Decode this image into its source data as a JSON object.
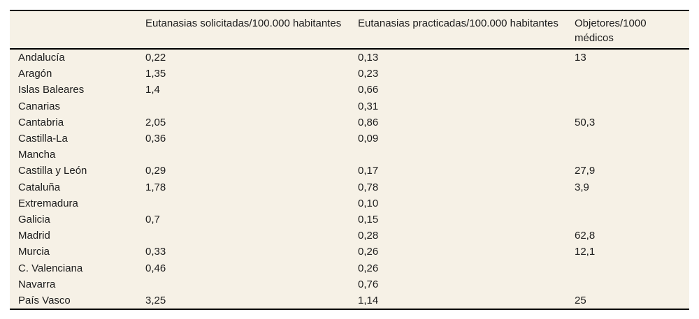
{
  "table": {
    "columns": [
      "",
      "Eutanasias solicitadas/100.000 habitantes",
      "Eutanasias practicadas/100.000 habitantes",
      "Objetores/1000 médicos"
    ],
    "rows": [
      {
        "region": "Andalucía",
        "solicitadas": "0,22",
        "practicadas": "0,13",
        "objetores": "13"
      },
      {
        "region": "Aragón",
        "solicitadas": "1,35",
        "practicadas": "0,23",
        "objetores": ""
      },
      {
        "region": "Islas Baleares",
        "solicitadas": "1,4",
        "practicadas": "0,66",
        "objetores": ""
      },
      {
        "region": "Canarias",
        "solicitadas": "",
        "practicadas": "0,31",
        "objetores": ""
      },
      {
        "region": "Cantabria",
        "solicitadas": "2,05",
        "practicadas": "0,86",
        "objetores": "50,3"
      },
      {
        "region": "Castilla-La Mancha",
        "solicitadas": "0,36",
        "practicadas": "0,09",
        "objetores": ""
      },
      {
        "region": "Castilla y León",
        "solicitadas": "0,29",
        "practicadas": "0,17",
        "objetores": "27,9"
      },
      {
        "region": "Cataluña",
        "solicitadas": "1,78",
        "practicadas": "0,78",
        "objetores": "3,9"
      },
      {
        "region": "Extremadura",
        "solicitadas": "",
        "practicadas": "0,10",
        "objetores": ""
      },
      {
        "region": "Galicia",
        "solicitadas": "0,7",
        "practicadas": "0,15",
        "objetores": ""
      },
      {
        "region": "Madrid",
        "solicitadas": "",
        "practicadas": "0,28",
        "objetores": "62,8"
      },
      {
        "region": "Murcia",
        "solicitadas": "0,33",
        "practicadas": "0,26",
        "objetores": "12,1"
      },
      {
        "region": "C. Valenciana",
        "solicitadas": "0,46",
        "practicadas": "0,26",
        "objetores": ""
      },
      {
        "region": "Navarra",
        "solicitadas": "",
        "practicadas": "0,76",
        "objetores": ""
      },
      {
        "region": "País Vasco",
        "solicitadas": "3,25",
        "practicadas": "1,14",
        "objetores": "25"
      }
    ]
  },
  "colors": {
    "page_background": "#ffffff",
    "table_background": "#f6f1e6",
    "border": "#000000",
    "text": "#1c1c1c"
  }
}
